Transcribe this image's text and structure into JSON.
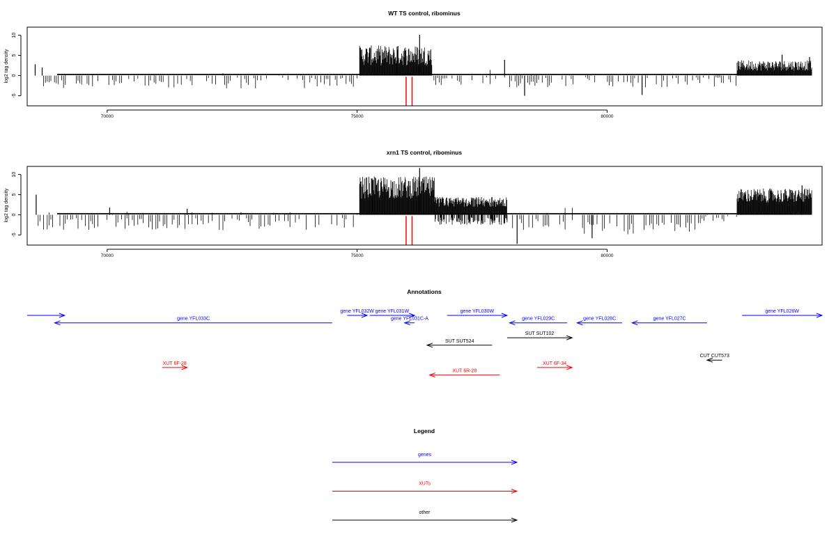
{
  "chart_data": [
    {
      "type": "bar",
      "title": "WT TS control, ribominus",
      "ylabel": "log2 tag density",
      "xlabel": "",
      "xlim": [
        68400,
        84300
      ],
      "ylim": [
        -7.5,
        12
      ],
      "yticks": [
        -5,
        0,
        5,
        10
      ],
      "xticks": [
        70000,
        75000,
        80000
      ],
      "segments": [
        {
          "start": 68500,
          "end": 68620,
          "pos": [
            0.5,
            2.2
          ],
          "neg": [
            0,
            0
          ]
        },
        {
          "start": 68620,
          "end": 75050,
          "pos": [
            0,
            0.6
          ],
          "neg": [
            -0.5,
            -3.2
          ]
        },
        {
          "start": 75050,
          "end": 76500,
          "pos": [
            2.5,
            7.5
          ],
          "neg": [
            0,
            0
          ]
        },
        {
          "start": 76500,
          "end": 78050,
          "pos": [
            0,
            1.6
          ],
          "neg": [
            -0.3,
            -2.4
          ]
        },
        {
          "start": 78050,
          "end": 82600,
          "pos": [
            0,
            0.4
          ],
          "neg": [
            -0.4,
            -3.0
          ]
        },
        {
          "start": 82600,
          "end": 84100,
          "pos": [
            1.2,
            3.8
          ],
          "neg": [
            0,
            0
          ]
        }
      ],
      "peaks": [
        {
          "x": 68560,
          "y": 2.8
        },
        {
          "x": 68700,
          "y": 2.0
        },
        {
          "x": 75800,
          "y": 7.2
        },
        {
          "x": 76250,
          "y": 10.1
        },
        {
          "x": 77950,
          "y": 3.9
        },
        {
          "x": 78350,
          "y": -5.0
        },
        {
          "x": 80700,
          "y": -4.8
        },
        {
          "x": 83500,
          "y": 5.2
        },
        {
          "x": 84050,
          "y": 4.6
        }
      ],
      "markers": [
        {
          "x": 75980,
          "y0": -7.5,
          "y1": -0.3
        },
        {
          "x": 76100,
          "y0": -7.5,
          "y1": -0.3
        }
      ],
      "marker_color": "#ff0000"
    },
    {
      "type": "bar",
      "title": "xrn1 TS control, ribominus",
      "ylabel": "log2 tag density",
      "xlabel": "",
      "xlim": [
        68400,
        84300
      ],
      "ylim": [
        -7.5,
        12
      ],
      "yticks": [
        -5,
        0,
        5,
        10
      ],
      "xticks": [
        70000,
        75000,
        80000
      ],
      "segments": [
        {
          "start": 68500,
          "end": 68620,
          "pos": [
            0.5,
            4.8
          ],
          "neg": [
            0,
            0
          ]
        },
        {
          "start": 68620,
          "end": 75050,
          "pos": [
            0,
            0.8
          ],
          "neg": [
            -0.8,
            -3.8
          ]
        },
        {
          "start": 75050,
          "end": 76550,
          "pos": [
            4.0,
            9.5
          ],
          "neg": [
            0,
            0
          ]
        },
        {
          "start": 76550,
          "end": 78000,
          "pos": [
            2.0,
            4.5
          ],
          "neg": [
            -0.5,
            -2.5
          ]
        },
        {
          "start": 78000,
          "end": 79400,
          "pos": [
            0.3,
            2.0
          ],
          "neg": [
            -1.0,
            -3.8
          ]
        },
        {
          "start": 79400,
          "end": 81900,
          "pos": [
            0.1,
            0.8
          ],
          "neg": [
            -1.8,
            -5.0
          ]
        },
        {
          "start": 81900,
          "end": 82600,
          "pos": [
            0,
            0.6
          ],
          "neg": [
            -0.3,
            -1.6
          ]
        },
        {
          "start": 82600,
          "end": 84100,
          "pos": [
            3.0,
            6.5
          ],
          "neg": [
            0,
            0
          ]
        }
      ],
      "peaks": [
        {
          "x": 68580,
          "y": 5.0
        },
        {
          "x": 70050,
          "y": 1.8
        },
        {
          "x": 71600,
          "y": 1.5
        },
        {
          "x": 75300,
          "y": 9.0
        },
        {
          "x": 76250,
          "y": 11.6
        },
        {
          "x": 78200,
          "y": -7.2
        },
        {
          "x": 79700,
          "y": -5.8
        },
        {
          "x": 83900,
          "y": 7.3
        }
      ],
      "markers": [
        {
          "x": 75980,
          "y0": -7.5,
          "y1": -0.3
        },
        {
          "x": 76100,
          "y0": -7.5,
          "y1": -0.3
        }
      ],
      "marker_color": "#ff0000"
    }
  ],
  "annotations": {
    "title": "Annotations",
    "items": [
      {
        "label": "",
        "start": 68400,
        "end": 69150,
        "row": 0,
        "color": "#0000ff"
      },
      {
        "label": "gene YFL033C",
        "start": 74500,
        "end": 68950,
        "row": 1,
        "color": "#0000ff"
      },
      {
        "label": "gene YFL032W",
        "start": 74800,
        "end": 75200,
        "row": 0,
        "color": "#0000ff"
      },
      {
        "label": "gene YFL031W",
        "start": 75250,
        "end": 76150,
        "row": 0,
        "color": "#0000ff"
      },
      {
        "label": "gene YFL031C-A",
        "start": 76150,
        "end": 75950,
        "row": 1,
        "color": "#0000ff"
      },
      {
        "label": "gene YFL030W",
        "start": 76800,
        "end": 78000,
        "row": 0,
        "color": "#0000ff"
      },
      {
        "label": "gene YFL029C",
        "start": 79200,
        "end": 78050,
        "row": 1,
        "color": "#0000ff"
      },
      {
        "label": "gene YFL028C",
        "start": 80300,
        "end": 79400,
        "row": 1,
        "color": "#0000ff"
      },
      {
        "label": "gene YFL027C",
        "start": 82000,
        "end": 80500,
        "row": 1,
        "color": "#0000ff"
      },
      {
        "label": "gene YFL026W",
        "start": 82700,
        "end": 84300,
        "row": 0,
        "color": "#0000ff"
      },
      {
        "label": "SUT SUT524",
        "start": 77700,
        "end": 76400,
        "row": 4,
        "color": "#000000"
      },
      {
        "label": "SUT SUT102",
        "start": 78000,
        "end": 79300,
        "row": 3,
        "color": "#000000"
      },
      {
        "label": "CUT CUT573",
        "start": 82300,
        "end": 82000,
        "row": 6,
        "color": "#000000"
      },
      {
        "label": "XUT 6F-28",
        "start": 71100,
        "end": 71600,
        "row": 7,
        "color": "#ff0000"
      },
      {
        "label": "XUT 6R-28",
        "start": 77850,
        "end": 76450,
        "row": 8,
        "color": "#ff0000"
      },
      {
        "label": "XUT 6F-34",
        "start": 78600,
        "end": 79300,
        "row": 7,
        "color": "#ff0000"
      }
    ]
  },
  "legend": {
    "title": "Legend",
    "items": [
      {
        "label": "genes",
        "color": "#0000ff"
      },
      {
        "label": "XUTs",
        "color": "#ff0000"
      },
      {
        "label": "other",
        "color": "#000000"
      }
    ]
  }
}
